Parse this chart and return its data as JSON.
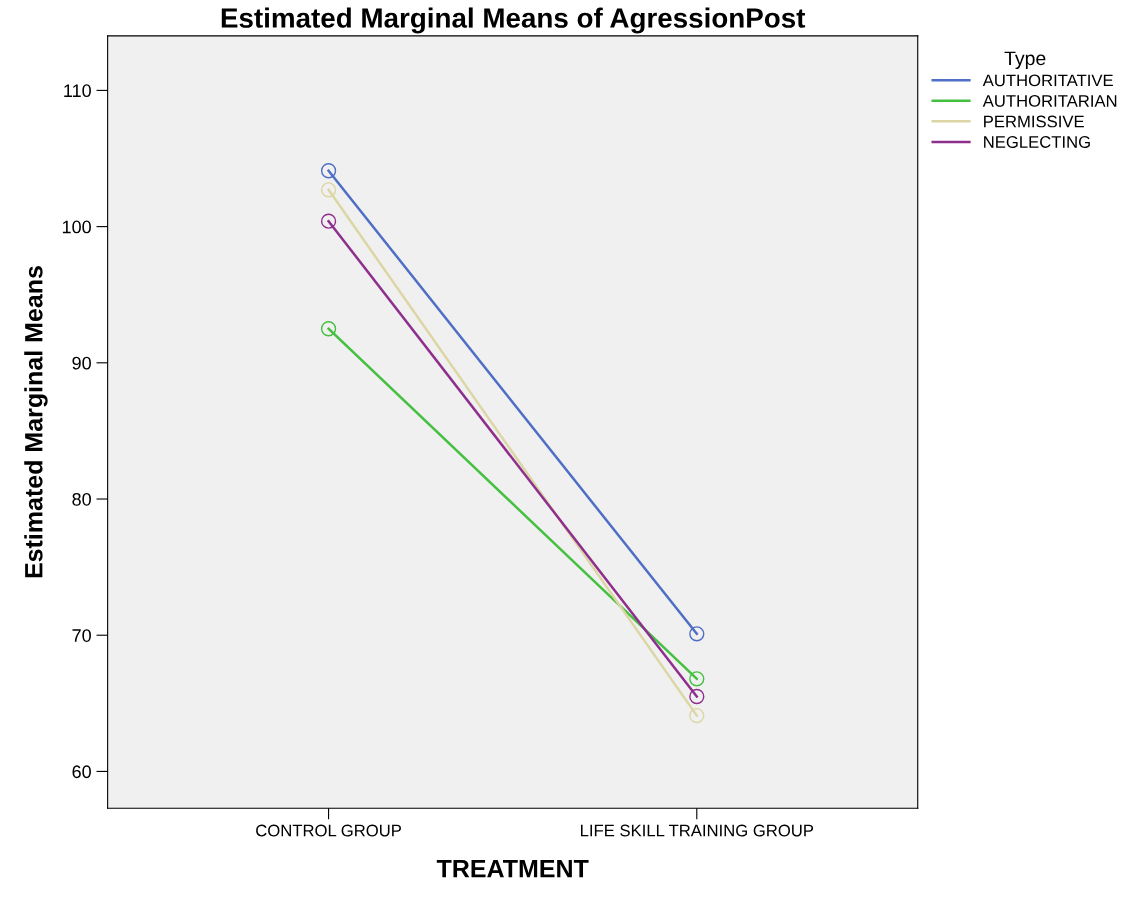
{
  "chart_data": {
    "type": "line",
    "title": "Estimated Marginal Means of AgressionPost",
    "xlabel": "TREATMENT",
    "ylabel": "Estimated Marginal Means",
    "legend_title": "Type",
    "categories": [
      "CONTROL GROUP",
      "LIFE SKILL TRAINING GROUP"
    ],
    "series": [
      {
        "name": "AUTHORITATIVE",
        "color": "#4f6fc6",
        "values": [
          104.1,
          70.1
        ]
      },
      {
        "name": "AUTHORITARIAN",
        "color": "#45c040",
        "values": [
          92.5,
          66.8
        ]
      },
      {
        "name": "PERMISSIVE",
        "color": "#dcd6a4",
        "values": [
          102.7,
          64.1
        ]
      },
      {
        "name": "NEGLECTING",
        "color": "#8e2f8e",
        "values": [
          100.4,
          65.5
        ]
      }
    ],
    "ylim": [
      57.3,
      114.0
    ],
    "yticks": [
      60,
      70,
      80,
      90,
      100,
      110
    ],
    "grid": false,
    "legend": "top right",
    "marker": "circle",
    "line_style": "solid"
  }
}
